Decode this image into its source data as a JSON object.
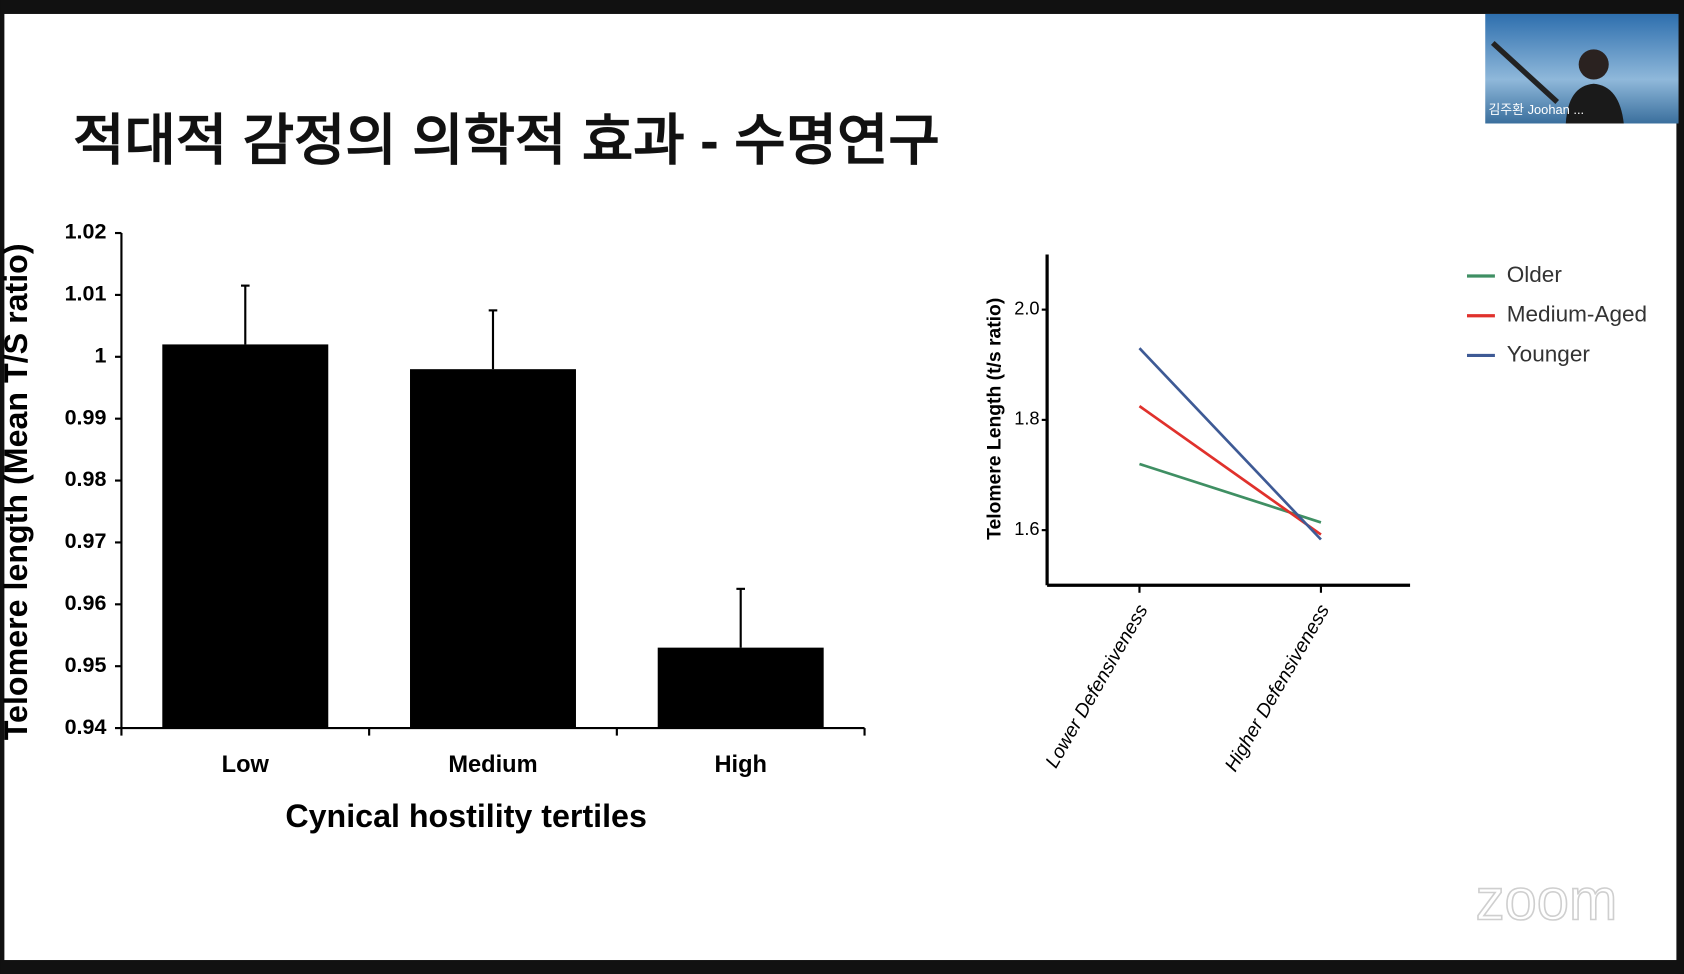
{
  "title": "적대적 감정의 의학적 효과 - 수명연구",
  "participant_name": "김주환 Joohan ...",
  "watermark": "zoom",
  "chart_data": [
    {
      "type": "bar",
      "categories": [
        "Low",
        "Medium",
        "High"
      ],
      "values": [
        1.002,
        0.998,
        0.953
      ],
      "errors": [
        0.0095,
        0.0095,
        0.0095
      ],
      "color": "#000000",
      "ylim": [
        0.94,
        1.02
      ],
      "yticks": [
        0.94,
        0.95,
        0.96,
        0.97,
        0.98,
        0.99,
        1,
        1.01,
        1.02
      ],
      "y_label": "Telomere length (Mean T/S ratio)",
      "x_label": "Cynical hostility tertiles"
    },
    {
      "type": "line",
      "categories": [
        "Lower Defensiveness",
        "Higher Defensiveness"
      ],
      "series": [
        {
          "name": "Older",
          "color": "#3f8f63",
          "values": [
            1.72,
            1.614
          ]
        },
        {
          "name": "Medium-Aged",
          "color": "#e0312c",
          "values": [
            1.825,
            1.592
          ]
        },
        {
          "name": "Younger",
          "color": "#3e5a95",
          "values": [
            1.93,
            1.583
          ]
        }
      ],
      "ylim": [
        1.5,
        2.1
      ],
      "yticks": [
        1.6,
        1.8,
        {
          "value": 2,
          "label": "2.0"
        }
      ],
      "y_label": "Telomere Length (t/s ratio)",
      "legend": "right"
    }
  ]
}
